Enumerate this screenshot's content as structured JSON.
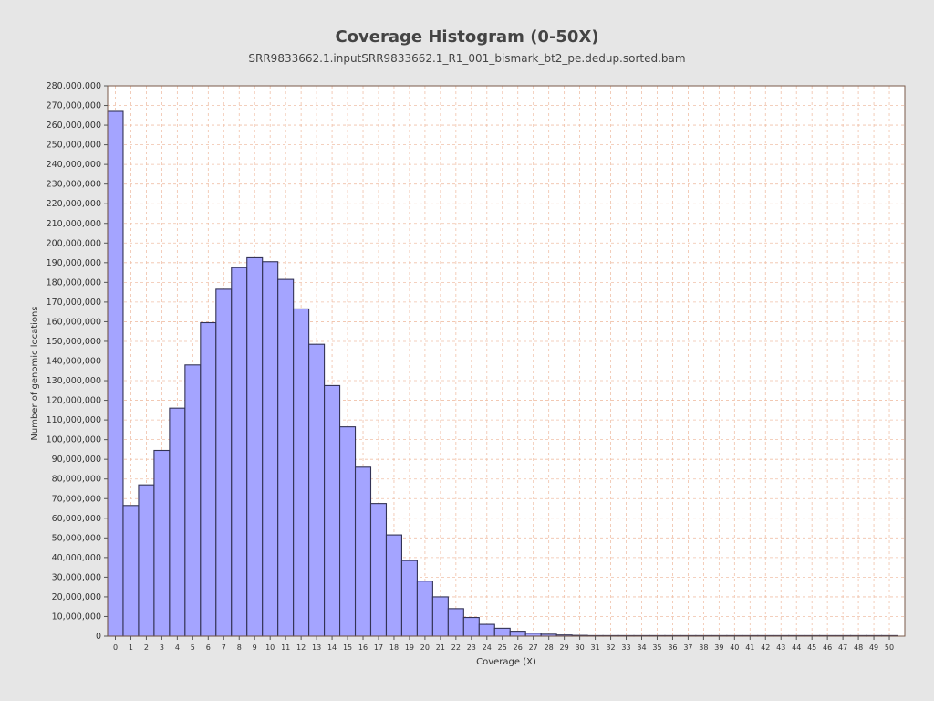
{
  "chart_data": {
    "type": "bar",
    "title": "Coverage Histogram (0-50X)",
    "subtitle": "SRR9833662.1.inputSRR9833662.1_R1_001_bismark_bt2_pe.dedup.sorted.bam",
    "xlabel": "Coverage (X)",
    "ylabel": "Number of genomic locations",
    "ylim": [
      0,
      280000000
    ],
    "y_ticks": [
      "0",
      "10,000,000",
      "20,000,000",
      "30,000,000",
      "40,000,000",
      "50,000,000",
      "60,000,000",
      "70,000,000",
      "80,000,000",
      "90,000,000",
      "100,000,000",
      "110,000,000",
      "120,000,000",
      "130,000,000",
      "140,000,000",
      "150,000,000",
      "160,000,000",
      "170,000,000",
      "180,000,000",
      "190,000,000",
      "200,000,000",
      "210,000,000",
      "220,000,000",
      "230,000,000",
      "240,000,000",
      "250,000,000",
      "260,000,000",
      "270,000,000",
      "280,000,000"
    ],
    "categories": [
      "0",
      "1",
      "2",
      "3",
      "4",
      "5",
      "6",
      "7",
      "8",
      "9",
      "10",
      "11",
      "12",
      "13",
      "14",
      "15",
      "16",
      "17",
      "18",
      "19",
      "20",
      "21",
      "22",
      "23",
      "24",
      "25",
      "26",
      "27",
      "28",
      "29",
      "30",
      "31",
      "32",
      "33",
      "34",
      "35",
      "36",
      "37",
      "38",
      "39",
      "40",
      "41",
      "42",
      "43",
      "44",
      "45",
      "46",
      "47",
      "48",
      "49",
      "50"
    ],
    "values": [
      267000000,
      66500000,
      77000000,
      94500000,
      116000000,
      138000000,
      159500000,
      176500000,
      187500000,
      192500000,
      190500000,
      181500000,
      166500000,
      148500000,
      127500000,
      106500000,
      86000000,
      67500000,
      51500000,
      38500000,
      28000000,
      20000000,
      14000000,
      9500000,
      6000000,
      4000000,
      2500000,
      1500000,
      1000000,
      600000,
      400000,
      250000,
      150000,
      100000,
      80000,
      60000,
      50000,
      40000,
      30000,
      25000,
      20000,
      15000,
      12000,
      10000,
      8000,
      6000,
      5000,
      4000,
      3000,
      2000,
      1000
    ],
    "grid": true,
    "colors": {
      "bar_fill": "#a4a4ff",
      "bar_stroke": "#333355",
      "grid": "#f0c0a8",
      "plot_bg": "#ffffff",
      "plot_border": "#7a5a4a"
    }
  }
}
